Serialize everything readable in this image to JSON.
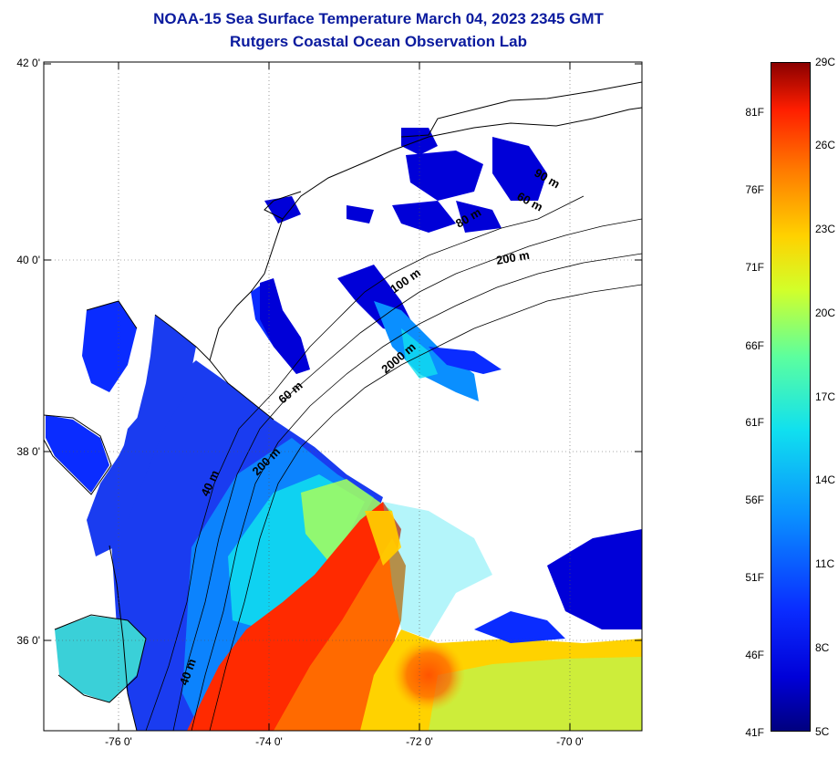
{
  "title": "NOAA-15 Sea Surface Temperature March 04, 2023 2345 GMT",
  "subtitle": "Rutgers Coastal Ocean Observation Lab",
  "axes": {
    "lat_labels": [
      "42 0'",
      "40 0'",
      "38 0'",
      "36 0'"
    ],
    "lon_labels": [
      "-76 0'",
      "-74 0'",
      "-72 0'",
      "-70 0'"
    ]
  },
  "contours": {
    "labels": [
      "90 m",
      "60 m",
      "80 m",
      "200 m",
      "100 m",
      "2000 m",
      "60 m",
      "200 m",
      "40 m",
      "40 m"
    ]
  },
  "colorbar": {
    "fahrenheit": [
      "81F",
      "76F",
      "71F",
      "66F",
      "61F",
      "56F",
      "51F",
      "46F",
      "41F"
    ],
    "celsius": [
      "29C",
      "26C",
      "23C",
      "20C",
      "17C",
      "14C",
      "11C",
      "8C",
      "5C"
    ]
  },
  "colors": {
    "title": "#0a1a9e",
    "land": "#ffffff",
    "cold": "#0000d8",
    "cool": "#0a8fff",
    "mild": "#10e0ef",
    "warm": "#ffd200",
    "hot": "#ff1e00"
  }
}
